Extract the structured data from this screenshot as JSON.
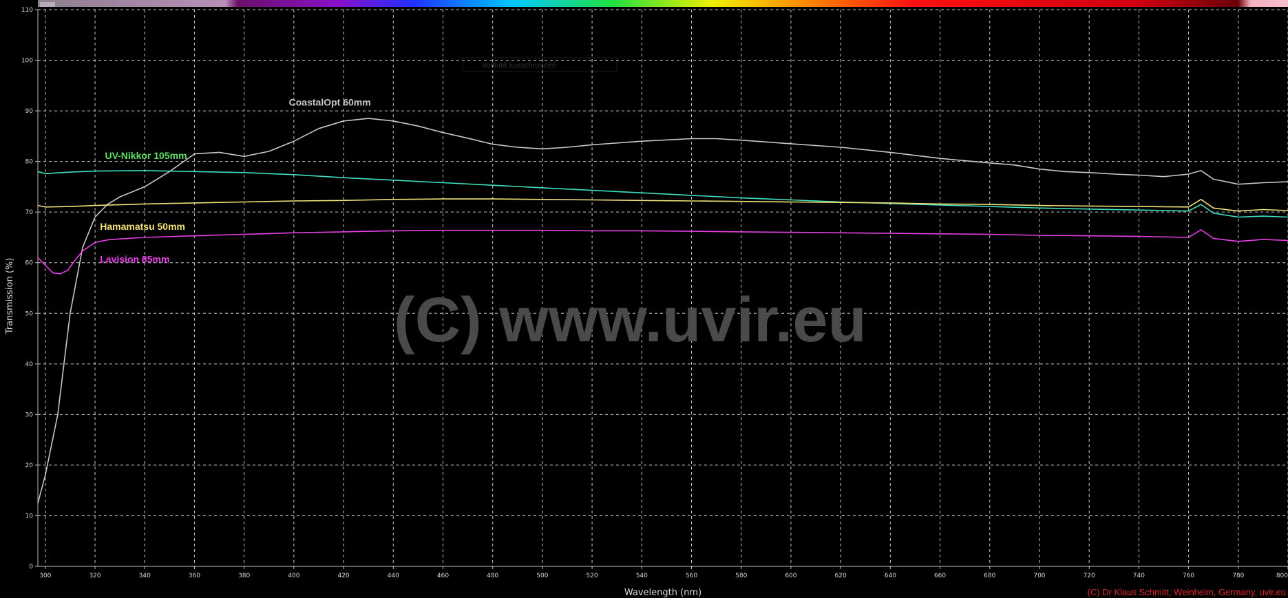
{
  "chart_data": {
    "type": "line",
    "xlabel": "Wavelength (nm)",
    "ylabel": "Transmission (%)",
    "xlim": [
      297,
      800
    ],
    "ylim": [
      0,
      110
    ],
    "x_ticks": [
      300,
      320,
      340,
      360,
      380,
      400,
      420,
      440,
      460,
      480,
      500,
      520,
      540,
      560,
      580,
      600,
      620,
      640,
      660,
      680,
      700,
      720,
      740,
      760,
      780,
      800
    ],
    "y_ticks": [
      0,
      10,
      20,
      30,
      40,
      50,
      60,
      70,
      80,
      90,
      100,
      110
    ],
    "grid": true,
    "spectrum_bar": true,
    "watermark": "(C) www.uvir.eu",
    "credit": "(C) Dr Klaus Schmitt, Weinheim, Germany, uvir.eu",
    "faint_label": "Vollbild ausschneiden",
    "series": [
      {
        "name": "CoastalOpt 60mm",
        "color": "#c8c8c8",
        "label_at": [
          398,
          91
        ],
        "x": [
          297,
          300,
          305,
          310,
          315,
          320,
          325,
          330,
          340,
          350,
          360,
          370,
          380,
          390,
          400,
          410,
          420,
          430,
          440,
          450,
          460,
          470,
          480,
          490,
          500,
          510,
          520,
          540,
          560,
          570,
          580,
          600,
          620,
          640,
          660,
          680,
          690,
          700,
          710,
          720,
          730,
          740,
          750,
          760,
          765,
          770,
          780,
          790,
          800
        ],
        "y": [
          12.5,
          18,
          30,
          50,
          63,
          69,
          71.5,
          73,
          75,
          78,
          81.5,
          81.8,
          81,
          82,
          84,
          86.5,
          88,
          88.5,
          88,
          87,
          85.7,
          84.6,
          83.4,
          82.8,
          82.5,
          82.8,
          83.3,
          84,
          84.5,
          84.5,
          84.2,
          83.5,
          82.8,
          81.8,
          80.6,
          79.7,
          79.3,
          78.5,
          78,
          77.8,
          77.5,
          77.3,
          77,
          77.5,
          78.2,
          76.5,
          75.5,
          75.8,
          76
        ]
      },
      {
        "name": "UV-Nikkor 105mm",
        "color": "#3fe0bf",
        "label_color": "#5de06a",
        "label_at": [
          324,
          80.5
        ],
        "x": [
          297,
          300,
          310,
          320,
          340,
          360,
          380,
          400,
          420,
          440,
          460,
          480,
          500,
          520,
          540,
          560,
          580,
          600,
          620,
          640,
          660,
          680,
          700,
          720,
          740,
          760,
          765,
          770,
          780,
          790,
          800
        ],
        "y": [
          78,
          77.6,
          77.9,
          78.1,
          78.2,
          78,
          77.8,
          77.4,
          76.8,
          76.3,
          75.8,
          75.3,
          74.8,
          74.3,
          73.8,
          73.3,
          72.8,
          72.4,
          72,
          71.7,
          71.4,
          71.1,
          70.8,
          70.6,
          70.4,
          70.2,
          71.5,
          69.8,
          69,
          69.2,
          69
        ]
      },
      {
        "name": "Hamamatsu 50mm",
        "color": "#f2e27a",
        "label_at": [
          322,
          66.5
        ],
        "x": [
          297,
          300,
          310,
          320,
          340,
          360,
          380,
          400,
          420,
          440,
          460,
          480,
          500,
          520,
          540,
          560,
          580,
          600,
          620,
          640,
          660,
          680,
          700,
          720,
          740,
          760,
          765,
          770,
          780,
          790,
          800
        ],
        "y": [
          71.3,
          71,
          71.1,
          71.3,
          71.6,
          71.8,
          72,
          72.2,
          72.3,
          72.5,
          72.6,
          72.6,
          72.5,
          72.4,
          72.3,
          72.2,
          72.1,
          72,
          71.9,
          71.8,
          71.6,
          71.5,
          71.3,
          71.2,
          71.1,
          71,
          72.5,
          70.8,
          70.2,
          70.5,
          70.3
        ]
      },
      {
        "name": "Lavision 85mm",
        "color": "#e63fe6",
        "label_at": [
          322,
          60
        ],
        "x": [
          297,
          300,
          303,
          306,
          309,
          312,
          315,
          320,
          325,
          330,
          340,
          360,
          380,
          400,
          420,
          440,
          460,
          480,
          500,
          520,
          540,
          560,
          580,
          600,
          620,
          640,
          660,
          680,
          700,
          720,
          740,
          760,
          765,
          770,
          780,
          790,
          800
        ],
        "y": [
          61,
          59.5,
          58,
          57.8,
          58.5,
          60.5,
          62.3,
          64,
          64.5,
          64.7,
          65,
          65.3,
          65.6,
          65.9,
          66.1,
          66.3,
          66.4,
          66.4,
          66.4,
          66.3,
          66.3,
          66.2,
          66.1,
          66,
          65.9,
          65.8,
          65.7,
          65.6,
          65.4,
          65.3,
          65.2,
          65,
          66.5,
          64.8,
          64.2,
          64.6,
          64.4
        ]
      }
    ]
  }
}
